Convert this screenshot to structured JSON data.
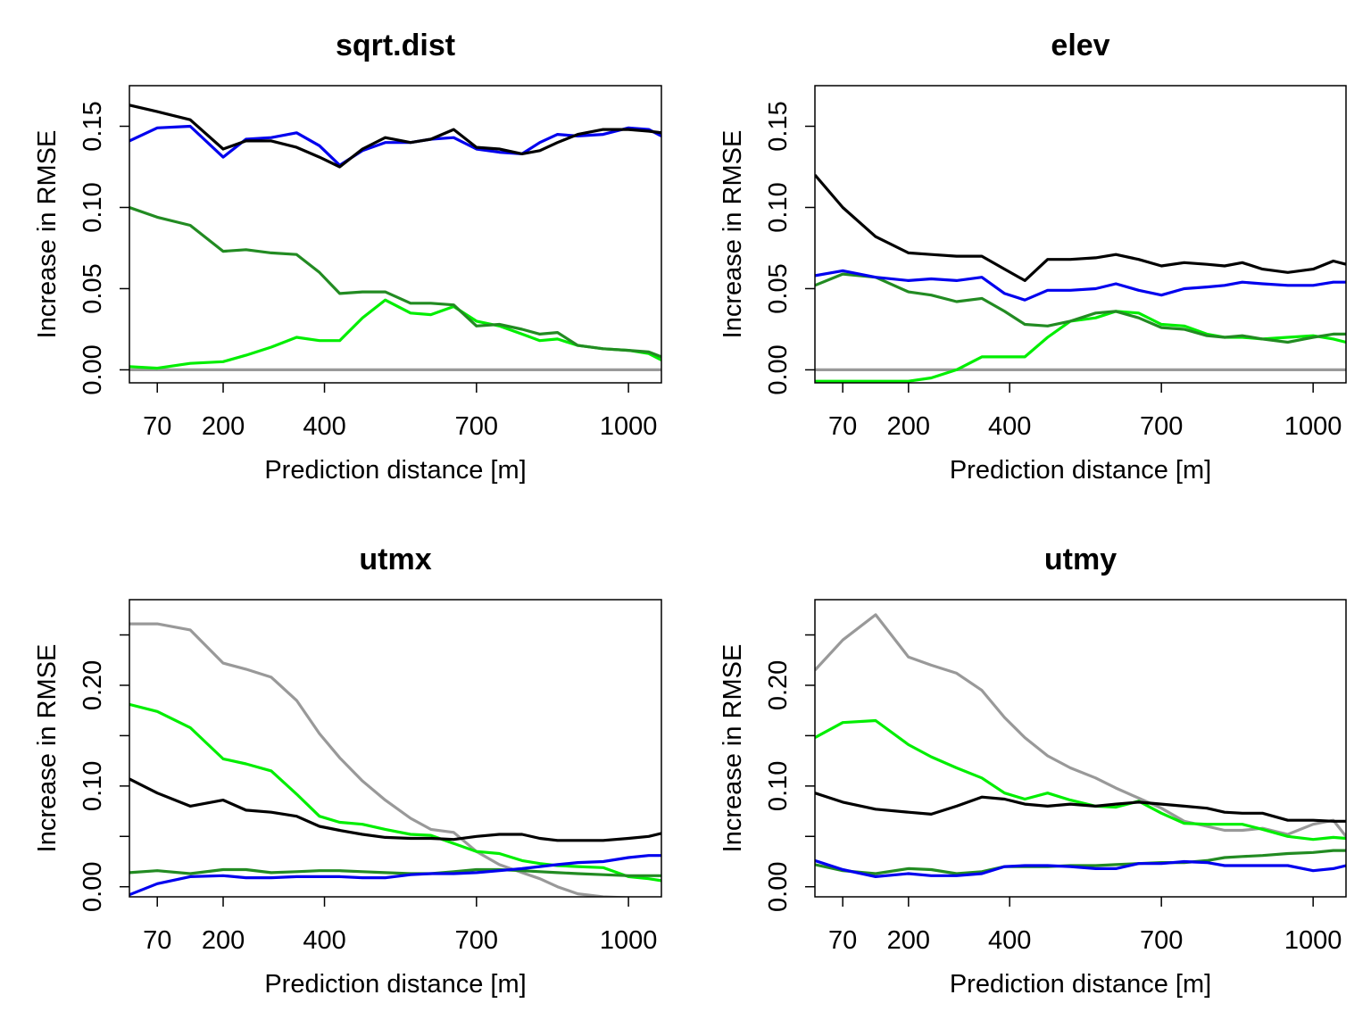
{
  "chart_data": [
    {
      "type": "line",
      "title": "sqrt.dist",
      "xlabel": "Prediction distance [m]",
      "ylabel": "Increase in RMSE",
      "xlim": [
        15,
        1065
      ],
      "ylim": [
        -0.008,
        0.175
      ],
      "xticks": [
        70,
        200,
        400,
        700,
        1000
      ],
      "yticks": [
        "0.00",
        "0.05",
        "0.10",
        "0.15"
      ],
      "yticks_values": [
        0,
        0.05,
        0.1,
        0.15
      ],
      "x": [
        15,
        70,
        135,
        200,
        245,
        295,
        345,
        390,
        430,
        475,
        520,
        570,
        610,
        655,
        700,
        745,
        790,
        825,
        860,
        900,
        950,
        1000,
        1040,
        1065
      ],
      "series": [
        {
          "color": "#000000",
          "values": [
            0.163,
            0.159,
            0.154,
            0.136,
            0.141,
            0.141,
            0.137,
            0.131,
            0.125,
            0.136,
            0.143,
            0.14,
            0.142,
            0.148,
            0.137,
            0.136,
            0.133,
            0.135,
            0.14,
            0.145,
            0.148,
            0.148,
            0.147,
            0.146
          ]
        },
        {
          "color": "#0000ee",
          "values": [
            0.141,
            0.149,
            0.15,
            0.131,
            0.142,
            0.143,
            0.146,
            0.138,
            0.126,
            0.135,
            0.14,
            0.14,
            0.142,
            0.143,
            0.136,
            0.134,
            0.133,
            0.14,
            0.145,
            0.144,
            0.145,
            0.149,
            0.148,
            0.144
          ]
        },
        {
          "color": "#228b22",
          "values": [
            0.1,
            0.094,
            0.089,
            0.073,
            0.074,
            0.072,
            0.071,
            0.06,
            0.047,
            0.048,
            0.048,
            0.041,
            0.041,
            0.04,
            0.027,
            0.028,
            0.025,
            0.022,
            0.023,
            0.015,
            0.013,
            0.012,
            0.011,
            0.008
          ]
        },
        {
          "color": "#00ee00",
          "values": [
            0.002,
            0.001,
            0.004,
            0.005,
            0.009,
            0.014,
            0.02,
            0.018,
            0.018,
            0.032,
            0.043,
            0.035,
            0.034,
            0.039,
            0.03,
            0.027,
            0.022,
            0.018,
            0.019,
            0.015,
            0.013,
            0.012,
            0.01,
            0.006
          ]
        },
        {
          "color": "#999999",
          "values": [
            0,
            0,
            0,
            0,
            0,
            0,
            0,
            0,
            0,
            0,
            0,
            0,
            0,
            0,
            0,
            0,
            0,
            0,
            0,
            0,
            0,
            0,
            0,
            0
          ]
        }
      ]
    },
    {
      "type": "line",
      "title": "elev",
      "xlabel": "Prediction distance [m]",
      "ylabel": "Increase in RMSE",
      "xlim": [
        15,
        1065
      ],
      "ylim": [
        -0.008,
        0.175
      ],
      "xticks": [
        70,
        200,
        400,
        700,
        1000
      ],
      "yticks": [
        "0.00",
        "0.05",
        "0.10",
        "0.15"
      ],
      "yticks_values": [
        0,
        0.05,
        0.1,
        0.15
      ],
      "x": [
        15,
        70,
        135,
        200,
        245,
        295,
        345,
        390,
        430,
        475,
        520,
        570,
        610,
        655,
        700,
        745,
        790,
        825,
        860,
        900,
        950,
        1000,
        1040,
        1065
      ],
      "series": [
        {
          "color": "#000000",
          "values": [
            0.12,
            0.1,
            0.082,
            0.072,
            0.071,
            0.07,
            0.07,
            0.062,
            0.055,
            0.068,
            0.068,
            0.069,
            0.071,
            0.068,
            0.064,
            0.066,
            0.065,
            0.064,
            0.066,
            0.062,
            0.06,
            0.062,
            0.067,
            0.065
          ]
        },
        {
          "color": "#0000ee",
          "values": [
            0.058,
            0.061,
            0.057,
            0.055,
            0.056,
            0.055,
            0.057,
            0.047,
            0.043,
            0.049,
            0.049,
            0.05,
            0.053,
            0.049,
            0.046,
            0.05,
            0.051,
            0.052,
            0.054,
            0.053,
            0.052,
            0.052,
            0.054,
            0.054
          ]
        },
        {
          "color": "#228b22",
          "values": [
            0.052,
            0.059,
            0.057,
            0.048,
            0.046,
            0.042,
            0.044,
            0.036,
            0.028,
            0.027,
            0.03,
            0.035,
            0.036,
            0.032,
            0.026,
            0.025,
            0.021,
            0.02,
            0.021,
            0.019,
            0.017,
            0.02,
            0.022,
            0.022
          ]
        },
        {
          "color": "#00ee00",
          "values": [
            -0.007,
            -0.007,
            -0.007,
            -0.007,
            -0.005,
            0.0,
            0.008,
            0.008,
            0.008,
            0.02,
            0.03,
            0.032,
            0.036,
            0.035,
            0.028,
            0.027,
            0.022,
            0.02,
            0.02,
            0.019,
            0.02,
            0.021,
            0.019,
            0.017
          ]
        },
        {
          "color": "#999999",
          "values": [
            0,
            0,
            0,
            0,
            0,
            0,
            0,
            0,
            0,
            0,
            0,
            0,
            0,
            0,
            0,
            0,
            0,
            0,
            0,
            0,
            0,
            0,
            0,
            0
          ]
        }
      ]
    },
    {
      "type": "line",
      "title": "utmx",
      "xlabel": "Prediction distance [m]",
      "ylabel": "Increase in RMSE",
      "xlim": [
        15,
        1065
      ],
      "ylim": [
        -0.01,
        0.285
      ],
      "xticks": [
        70,
        200,
        400,
        700,
        1000
      ],
      "yticks": [
        "0.00",
        "",
        "0.10",
        "",
        "0.20",
        ""
      ],
      "yticks_values": [
        0,
        0.05,
        0.1,
        0.15,
        0.2,
        0.25
      ],
      "x": [
        15,
        70,
        135,
        200,
        245,
        295,
        345,
        390,
        430,
        475,
        520,
        570,
        610,
        655,
        700,
        745,
        790,
        825,
        860,
        900,
        950,
        1000,
        1040,
        1065
      ],
      "series": [
        {
          "color": "#000000",
          "values": [
            0.107,
            0.093,
            0.08,
            0.086,
            0.076,
            0.074,
            0.07,
            0.06,
            0.056,
            0.052,
            0.049,
            0.048,
            0.048,
            0.047,
            0.05,
            0.052,
            0.052,
            0.048,
            0.046,
            0.046,
            0.046,
            0.048,
            0.05,
            0.053
          ]
        },
        {
          "color": "#0000ee",
          "values": [
            -0.008,
            0.003,
            0.01,
            0.011,
            0.009,
            0.009,
            0.01,
            0.01,
            0.01,
            0.009,
            0.009,
            0.012,
            0.013,
            0.013,
            0.014,
            0.016,
            0.018,
            0.02,
            0.022,
            0.024,
            0.025,
            0.029,
            0.031,
            0.031
          ]
        },
        {
          "color": "#228b22",
          "values": [
            0.014,
            0.016,
            0.013,
            0.017,
            0.017,
            0.014,
            0.015,
            0.016,
            0.016,
            0.015,
            0.014,
            0.013,
            0.013,
            0.015,
            0.017,
            0.017,
            0.016,
            0.015,
            0.014,
            0.013,
            0.012,
            0.011,
            0.011,
            0.011
          ]
        },
        {
          "color": "#00ee00",
          "values": [
            0.181,
            0.174,
            0.158,
            0.127,
            0.122,
            0.115,
            0.092,
            0.07,
            0.064,
            0.062,
            0.057,
            0.052,
            0.051,
            0.043,
            0.035,
            0.033,
            0.026,
            0.023,
            0.021,
            0.02,
            0.019,
            0.01,
            0.008,
            0.006
          ]
        },
        {
          "color": "#999999",
          "values": [
            0.261,
            0.261,
            0.255,
            0.222,
            0.216,
            0.208,
            0.185,
            0.152,
            0.128,
            0.105,
            0.086,
            0.068,
            0.057,
            0.054,
            0.035,
            0.022,
            0.014,
            0.008,
            0.0,
            -0.007,
            -0.01,
            -0.011,
            -0.011,
            -0.011
          ]
        }
      ]
    },
    {
      "type": "line",
      "title": "utmy",
      "xlabel": "Prediction distance [m]",
      "ylabel": "Increase in RMSE",
      "xlim": [
        15,
        1065
      ],
      "ylim": [
        -0.01,
        0.285
      ],
      "xticks": [
        70,
        200,
        400,
        700,
        1000
      ],
      "yticks": [
        "0.00",
        "",
        "0.10",
        "",
        "0.20",
        ""
      ],
      "yticks_values": [
        0,
        0.05,
        0.1,
        0.15,
        0.2,
        0.25
      ],
      "x": [
        15,
        70,
        135,
        200,
        245,
        295,
        345,
        390,
        430,
        475,
        520,
        570,
        610,
        655,
        700,
        745,
        790,
        825,
        860,
        900,
        950,
        1000,
        1040,
        1065
      ],
      "series": [
        {
          "color": "#000000",
          "values": [
            0.093,
            0.084,
            0.077,
            0.074,
            0.072,
            0.08,
            0.089,
            0.087,
            0.082,
            0.08,
            0.082,
            0.08,
            0.082,
            0.084,
            0.082,
            0.08,
            0.078,
            0.074,
            0.073,
            0.073,
            0.066,
            0.066,
            0.065,
            0.065
          ]
        },
        {
          "color": "#0000ee",
          "values": [
            0.026,
            0.017,
            0.01,
            0.013,
            0.011,
            0.011,
            0.013,
            0.02,
            0.021,
            0.021,
            0.02,
            0.018,
            0.018,
            0.023,
            0.023,
            0.025,
            0.024,
            0.021,
            0.021,
            0.021,
            0.021,
            0.016,
            0.018,
            0.021
          ]
        },
        {
          "color": "#228b22",
          "values": [
            0.022,
            0.016,
            0.013,
            0.018,
            0.017,
            0.013,
            0.015,
            0.02,
            0.02,
            0.02,
            0.021,
            0.021,
            0.022,
            0.023,
            0.024,
            0.024,
            0.026,
            0.029,
            0.03,
            0.031,
            0.033,
            0.034,
            0.036,
            0.036
          ]
        },
        {
          "color": "#00ee00",
          "values": [
            0.148,
            0.163,
            0.165,
            0.141,
            0.129,
            0.118,
            0.108,
            0.093,
            0.087,
            0.093,
            0.086,
            0.08,
            0.079,
            0.085,
            0.073,
            0.063,
            0.062,
            0.062,
            0.062,
            0.057,
            0.05,
            0.047,
            0.049,
            0.048
          ]
        },
        {
          "color": "#999999",
          "values": [
            0.215,
            0.245,
            0.27,
            0.228,
            0.22,
            0.212,
            0.195,
            0.168,
            0.148,
            0.13,
            0.118,
            0.108,
            0.098,
            0.088,
            0.078,
            0.065,
            0.06,
            0.056,
            0.056,
            0.058,
            0.052,
            0.062,
            0.066,
            0.05
          ]
        }
      ]
    }
  ]
}
